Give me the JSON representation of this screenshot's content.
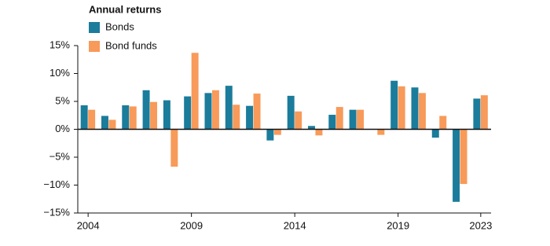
{
  "chart_data": {
    "type": "bar",
    "legend_title": "Annual returns",
    "categories": [
      "2004",
      null,
      null,
      null,
      null,
      "2009",
      null,
      null,
      null,
      null,
      "2014",
      null,
      null,
      null,
      null,
      "2019",
      null,
      null,
      null,
      "2023"
    ],
    "series": [
      {
        "name": "Bonds",
        "color": "#1b7c9b",
        "values": [
          4.3,
          2.4,
          4.3,
          7.0,
          5.2,
          5.9,
          6.5,
          7.8,
          4.2,
          -2.0,
          6.0,
          0.6,
          2.6,
          3.5,
          0.0,
          8.7,
          7.5,
          -1.5,
          -13.0,
          5.5
        ]
      },
      {
        "name": "Bond funds",
        "color": "#f89a5a",
        "values": [
          3.5,
          1.7,
          4.1,
          4.9,
          -6.7,
          13.7,
          7.0,
          4.4,
          6.4,
          -1.0,
          3.2,
          -1.1,
          4.0,
          3.5,
          -1.0,
          7.7,
          6.5,
          2.4,
          -9.8,
          6.1
        ]
      }
    ],
    "ylim": [
      -15,
      15
    ],
    "yticks": [
      {
        "value": -15,
        "label": "−15%"
      },
      {
        "value": -10,
        "label": "−10%"
      },
      {
        "value": -5,
        "label": "−5%"
      },
      {
        "value": 0,
        "label": "0%"
      },
      {
        "value": 5,
        "label": "5%"
      },
      {
        "value": 10,
        "label": "10%"
      },
      {
        "value": 15,
        "label": "15%"
      }
    ],
    "legend_position": "top-left"
  }
}
